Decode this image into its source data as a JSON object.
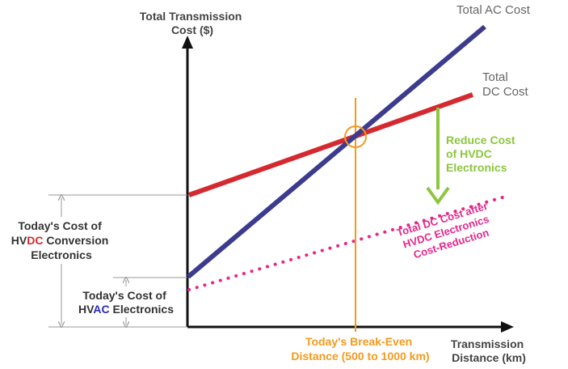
{
  "y_axis_label": [
    "Total Transmission",
    "Cost ($)"
  ],
  "x_axis_label": [
    "Transmission",
    "Distance (km)"
  ],
  "ac_line_label": "Total AC Cost",
  "dc_line_label": [
    "Total",
    "DC Cost"
  ],
  "reduce_label": [
    "Reduce Cost",
    "of HVDC",
    "Electronics"
  ],
  "dc_after_label": [
    "Total DC Cost after",
    "HVDC Electronics",
    "Cost-Reduction"
  ],
  "breakeven_label": [
    "Today's Break-Even",
    "Distance (500 to 1000 km)"
  ],
  "dc_conv_label": {
    "line1": "Today's Cost of",
    "line2_pre": "HV",
    "line2_em": "DC",
    "line2_post": " Conversion",
    "line3": "Electronics"
  },
  "ac_elec_label": {
    "line1": "Today's Cost of",
    "line2_pre": "HV",
    "line2_em": "AC",
    "line2_post": " Electronics"
  },
  "colors": {
    "ac_line": "#3c3b8e",
    "dc_line": "#d42a2f",
    "reduced_dc": "#e6268c",
    "breakeven": "#f39a1e",
    "reduce_arrow": "#8cc63f",
    "axis": "#111111",
    "bracket": "#9a9a9a",
    "text_dark": "#333333",
    "text_gray": "#666666",
    "dc_em": "#d42a2f",
    "ac_em": "#2a2ab8"
  }
}
